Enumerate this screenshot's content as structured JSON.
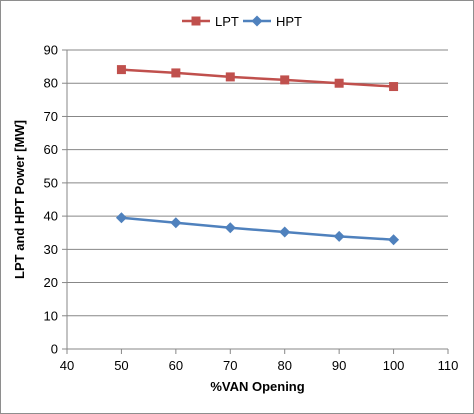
{
  "chart_data": {
    "type": "line",
    "title": "",
    "xlabel": "%VAN Opening",
    "ylabel": "LPT and HPT Power [MW]",
    "xlim": [
      40,
      110
    ],
    "ylim": [
      0,
      90
    ],
    "xticks": [
      40,
      50,
      60,
      70,
      80,
      90,
      100,
      110
    ],
    "yticks": [
      0,
      10,
      20,
      30,
      40,
      50,
      60,
      70,
      80,
      90
    ],
    "grid": "horizontal",
    "legend_position": "top",
    "series": [
      {
        "name": "LPT",
        "color": "#c0504d",
        "marker": "square",
        "x": [
          50,
          60,
          70,
          80,
          90,
          100
        ],
        "y": [
          84.1,
          83.1,
          81.9,
          81.0,
          80.0,
          79.0
        ]
      },
      {
        "name": "HPT",
        "color": "#4f81bd",
        "marker": "diamond",
        "x": [
          50,
          60,
          70,
          80,
          90,
          100
        ],
        "y": [
          39.5,
          38.0,
          36.5,
          35.2,
          33.9,
          32.9
        ]
      }
    ]
  }
}
